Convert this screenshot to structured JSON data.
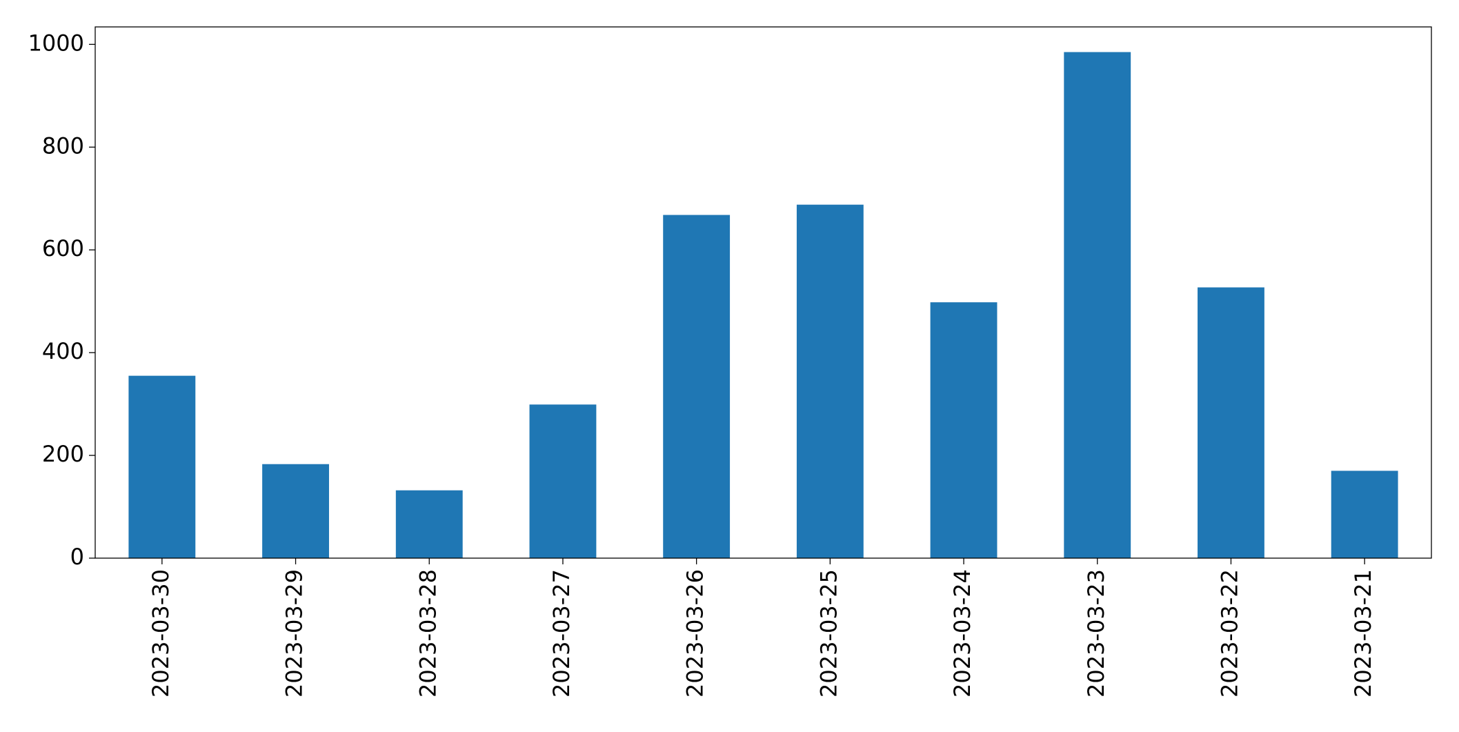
{
  "chart_data": {
    "type": "bar",
    "categories": [
      "2023-03-30",
      "2023-03-29",
      "2023-03-28",
      "2023-03-27",
      "2023-03-26",
      "2023-03-25",
      "2023-03-24",
      "2023-03-23",
      "2023-03-22",
      "2023-03-21"
    ],
    "values": [
      355,
      183,
      132,
      299,
      668,
      688,
      498,
      985,
      527,
      170
    ],
    "color": "#1f77b4",
    "ylim": [
      0,
      1034
    ],
    "yticks": [
      0,
      200,
      400,
      600,
      800,
      1000
    ],
    "grid": false
  }
}
